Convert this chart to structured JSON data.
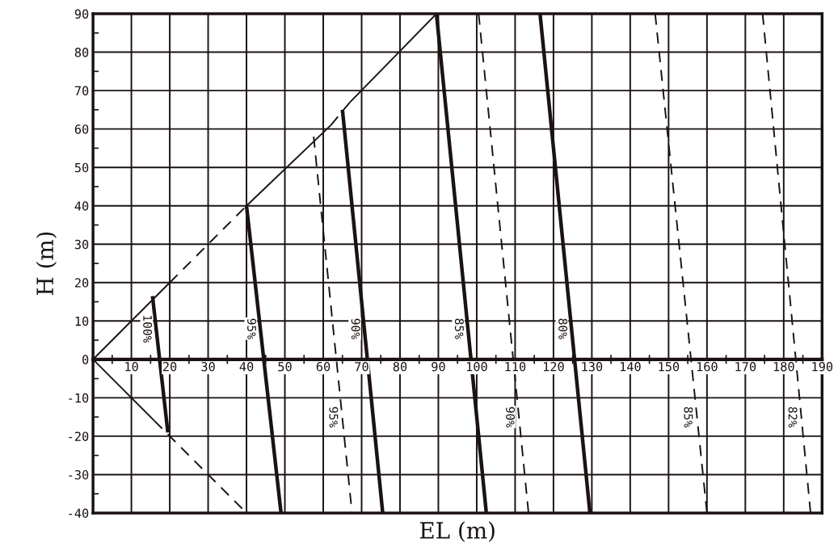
{
  "chart_data": {
    "type": "line",
    "xlabel": "EL (m)",
    "ylabel": "H (m)",
    "xlim": [
      0,
      190
    ],
    "ylim": [
      -40,
      90
    ],
    "xticks": [
      {
        "value": 0,
        "label": null
      },
      10,
      20,
      30,
      40,
      50,
      60,
      70,
      80,
      90,
      100,
      110,
      120,
      130,
      140,
      150,
      160,
      170,
      180,
      190
    ],
    "yticks": [
      -40,
      -30,
      -20,
      -10,
      0,
      10,
      20,
      30,
      40,
      50,
      60,
      70,
      80,
      90
    ],
    "grid": true,
    "legend": false,
    "series": [
      {
        "color": "#1a1311",
        "line_style": "solid",
        "x": [
          0,
          20
        ],
        "values": [
          0,
          20
        ]
      },
      {
        "color": "#1a1311",
        "line_style": "dashed",
        "x": [
          20,
          40
        ],
        "values": [
          20,
          40
        ]
      },
      {
        "color": "#1a1311",
        "line_style": "solid",
        "x": [
          40,
          62
        ],
        "values": [
          40,
          61
        ]
      },
      {
        "color": "#1a1311",
        "line_style": "dashed",
        "x": [
          62,
          67
        ],
        "values": [
          61,
          67
        ]
      },
      {
        "color": "#1a1311",
        "line_style": "solid",
        "x": [
          67,
          89.5
        ],
        "values": [
          67,
          90
        ]
      },
      {
        "color": "#1a1311",
        "line_style": "solid",
        "x": [
          0,
          16
        ],
        "values": [
          0,
          -16
        ]
      },
      {
        "color": "#1a1311",
        "line_style": "dashed",
        "x": [
          16,
          40
        ],
        "values": [
          -16,
          -40
        ]
      },
      {
        "name": "100%",
        "color": "#1a1311",
        "line_style": "solid",
        "x": [
          15.5,
          19.5
        ],
        "values": [
          16.5,
          -19
        ]
      },
      {
        "name": "95%",
        "color": "#1a1311",
        "line_style": "solid",
        "x": [
          40,
          49
        ],
        "values": [
          40,
          -40
        ]
      },
      {
        "name": "90%",
        "color": "#1a1311",
        "line_style": "solid",
        "x": [
          65,
          75.5
        ],
        "values": [
          65,
          -40
        ]
      },
      {
        "name": "85%",
        "color": "#1a1311",
        "line_style": "solid",
        "x": [
          89.5,
          102.5
        ],
        "values": [
          90,
          -40
        ]
      },
      {
        "name": "80%",
        "color": "#1a1311",
        "line_style": "solid",
        "x": [
          116.5,
          129.5
        ],
        "values": [
          90,
          -40
        ]
      },
      {
        "name": "95%",
        "color": "#1a1311",
        "line_style": "dashed",
        "x": [
          57.5,
          67.5
        ],
        "values": [
          58,
          -40
        ]
      },
      {
        "name": "90%",
        "color": "#1a1311",
        "line_style": "dashed",
        "x": [
          100.5,
          113.5
        ],
        "values": [
          90,
          -40
        ]
      },
      {
        "name": "85%",
        "color": "#1a1311",
        "line_style": "dashed",
        "x": [
          146.5,
          160
        ],
        "values": [
          90,
          -40
        ]
      },
      {
        "name": "82%",
        "color": "#1a1311",
        "line_style": "dashed",
        "x": [
          174.5,
          187
        ],
        "values": [
          90,
          -40
        ]
      }
    ]
  }
}
